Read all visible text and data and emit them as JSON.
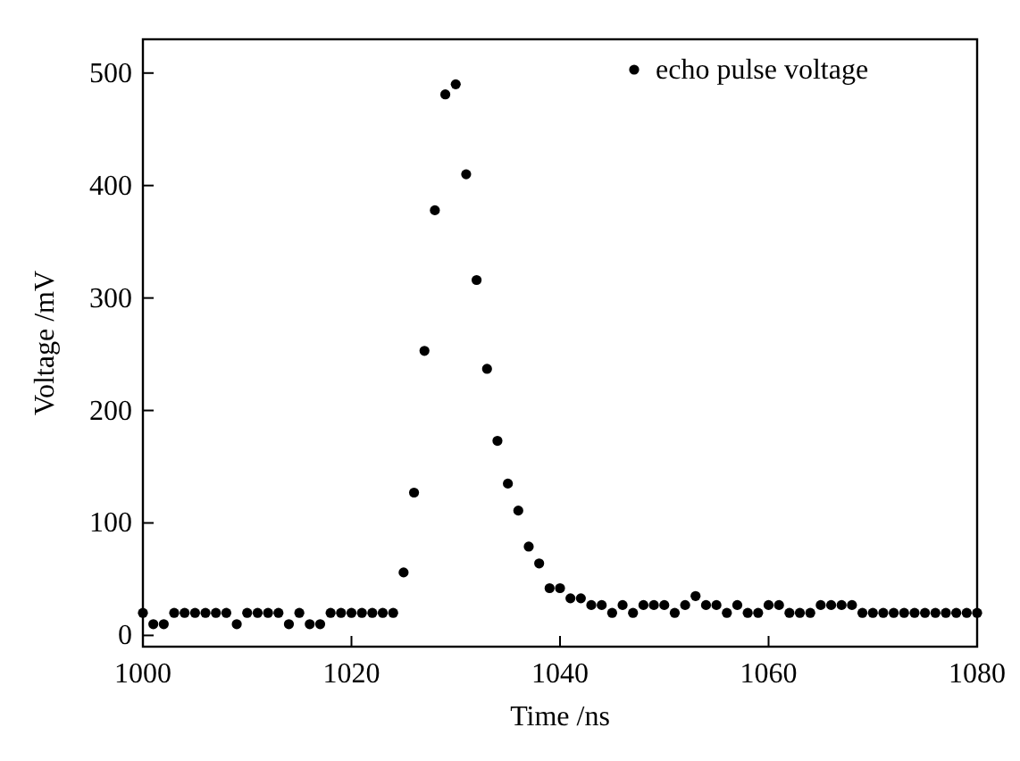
{
  "chart_data": {
    "type": "scatter",
    "xlabel": "Time /ns",
    "ylabel": "Voltage /mV",
    "x": [
      1000,
      1001,
      1002,
      1003,
      1004,
      1005,
      1006,
      1007,
      1008,
      1009,
      1010,
      1011,
      1012,
      1013,
      1014,
      1015,
      1016,
      1017,
      1018,
      1019,
      1020,
      1021,
      1022,
      1023,
      1024,
      1025,
      1026,
      1027,
      1028,
      1029,
      1030,
      1031,
      1032,
      1033,
      1034,
      1035,
      1036,
      1037,
      1038,
      1039,
      1040,
      1041,
      1042,
      1043,
      1044,
      1045,
      1046,
      1047,
      1048,
      1049,
      1050,
      1051,
      1052,
      1053,
      1054,
      1055,
      1056,
      1057,
      1058,
      1059,
      1060,
      1061,
      1062,
      1063,
      1064,
      1065,
      1066,
      1067,
      1068,
      1069,
      1070,
      1071,
      1072,
      1073,
      1074,
      1075,
      1076,
      1077,
      1078,
      1079,
      1080
    ],
    "series": [
      {
        "name": "echo pulse voltage",
        "color": "#000000",
        "values": [
          20,
          10,
          10,
          20,
          20,
          20,
          20,
          20,
          20,
          10,
          20,
          20,
          20,
          20,
          10,
          20,
          10,
          10,
          20,
          20,
          20,
          20,
          20,
          20,
          20,
          56,
          127,
          253,
          378,
          481,
          490,
          410,
          316,
          237,
          173,
          135,
          111,
          79,
          64,
          42,
          42,
          33,
          33,
          27,
          27,
          20,
          27,
          20,
          27,
          27,
          27,
          20,
          27,
          35,
          27,
          27,
          20,
          27,
          20,
          20,
          27,
          27,
          20,
          20,
          20,
          27,
          27,
          27,
          27,
          20,
          20,
          20,
          20,
          20,
          20,
          20,
          20,
          20,
          20,
          20,
          20
        ]
      }
    ],
    "xlim": [
      1000,
      1080
    ],
    "xticks": [
      1000,
      1020,
      1040,
      1060,
      1080
    ],
    "ylim": [
      -10,
      530
    ],
    "yticks": [
      0,
      100,
      200,
      300,
      400,
      500
    ],
    "marker": "circle",
    "legend": "top right",
    "grid": false
  }
}
